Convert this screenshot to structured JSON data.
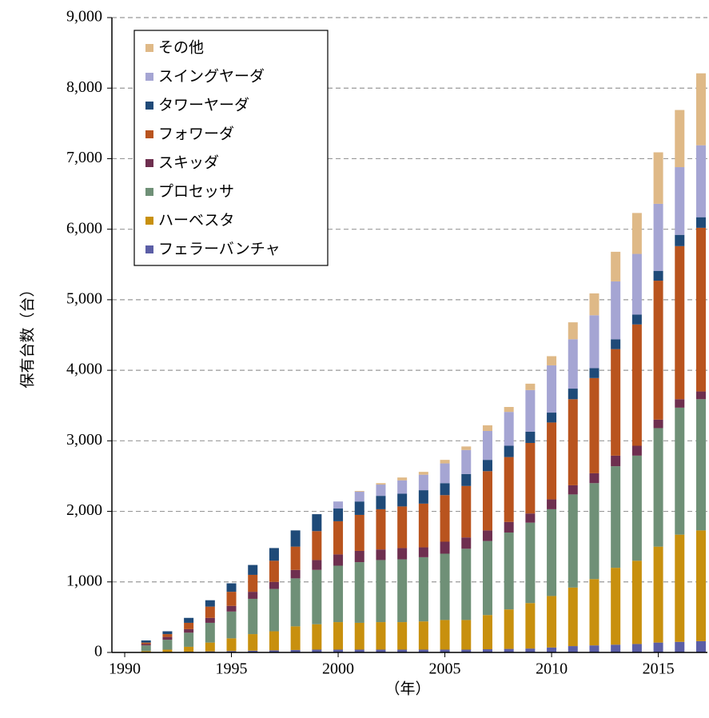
{
  "chart_data": {
    "type": "stacked-bar",
    "x_label": "（年）",
    "y_label": "保有台数（台）",
    "x": [
      1991,
      1992,
      1993,
      1994,
      1995,
      1996,
      1997,
      1998,
      1999,
      2000,
      2001,
      2002,
      2003,
      2004,
      2005,
      2006,
      2007,
      2008,
      2009,
      2010,
      2011,
      2012,
      2013,
      2014,
      2015,
      2016,
      2017
    ],
    "series": [
      {
        "name": "フェラーバンチャ",
        "color": "#5b5ea6",
        "values": [
          5,
          8,
          10,
          15,
          20,
          25,
          30,
          35,
          40,
          40,
          40,
          40,
          40,
          40,
          40,
          40,
          45,
          50,
          55,
          70,
          90,
          100,
          110,
          120,
          140,
          150,
          160
        ]
      },
      {
        "name": "ハーベスタ",
        "color": "#c8900e",
        "values": [
          15,
          32,
          70,
          125,
          180,
          235,
          270,
          335,
          360,
          390,
          380,
          390,
          390,
          400,
          420,
          420,
          485,
          560,
          645,
          730,
          830,
          940,
          1090,
          1180,
          1360,
          1520,
          1570
        ]
      },
      {
        "name": "プロセッサ",
        "color": "#6f9077",
        "values": [
          80,
          140,
          200,
          280,
          380,
          500,
          600,
          680,
          770,
          800,
          860,
          880,
          890,
          910,
          940,
          1010,
          1050,
          1090,
          1140,
          1230,
          1320,
          1360,
          1440,
          1490,
          1680,
          1800,
          1860
        ]
      },
      {
        "name": "スキッダ",
        "color": "#6e2f4f",
        "values": [
          20,
          40,
          50,
          70,
          80,
          100,
          100,
          120,
          140,
          160,
          160,
          150,
          160,
          140,
          170,
          160,
          150,
          150,
          130,
          140,
          130,
          140,
          150,
          140,
          120,
          120,
          110
        ]
      },
      {
        "name": "フォワーダ",
        "color": "#b9541e",
        "values": [
          20,
          40,
          90,
          160,
          200,
          240,
          300,
          330,
          410,
          470,
          510,
          570,
          590,
          620,
          660,
          730,
          840,
          920,
          1000,
          1090,
          1220,
          1350,
          1510,
          1720,
          1970,
          2170,
          2320
        ]
      },
      {
        "name": "タワーヤーダ",
        "color": "#1f4a78",
        "values": [
          30,
          40,
          70,
          90,
          120,
          140,
          180,
          230,
          240,
          180,
          190,
          190,
          180,
          190,
          170,
          170,
          160,
          160,
          160,
          140,
          150,
          140,
          140,
          140,
          140,
          160,
          150
        ]
      },
      {
        "name": "スイングヤーダ",
        "color": "#a5a5d3",
        "values": [
          0,
          0,
          0,
          0,
          0,
          0,
          0,
          0,
          0,
          100,
          140,
          160,
          190,
          220,
          280,
          340,
          410,
          480,
          590,
          670,
          700,
          750,
          820,
          860,
          950,
          960,
          1020
        ]
      },
      {
        "name": "その他",
        "color": "#dfb987",
        "values": [
          0,
          0,
          0,
          0,
          0,
          0,
          0,
          0,
          0,
          0,
          10,
          20,
          40,
          40,
          50,
          50,
          80,
          70,
          90,
          130,
          240,
          310,
          420,
          580,
          730,
          810,
          1020
        ]
      }
    ],
    "xlim": [
      1989.4,
      2017.3
    ],
    "xticks": [
      1990,
      1995,
      2000,
      2005,
      2010,
      2015
    ],
    "ylim": [
      0,
      9000
    ],
    "yticks": [
      0,
      {
        "value": 1000,
        "label": "1,000"
      },
      {
        "value": 2000,
        "label": "2,000"
      },
      {
        "value": 3000,
        "label": "3,000"
      },
      {
        "value": 4000,
        "label": "4,000"
      },
      {
        "value": 5000,
        "label": "5,000"
      },
      {
        "value": 6000,
        "label": "6,000"
      },
      {
        "value": 7000,
        "label": "7,000"
      },
      {
        "value": 8000,
        "label": "8,000"
      },
      {
        "value": 9000,
        "label": "9,000"
      }
    ],
    "grid": true,
    "legend": "upper-left"
  }
}
